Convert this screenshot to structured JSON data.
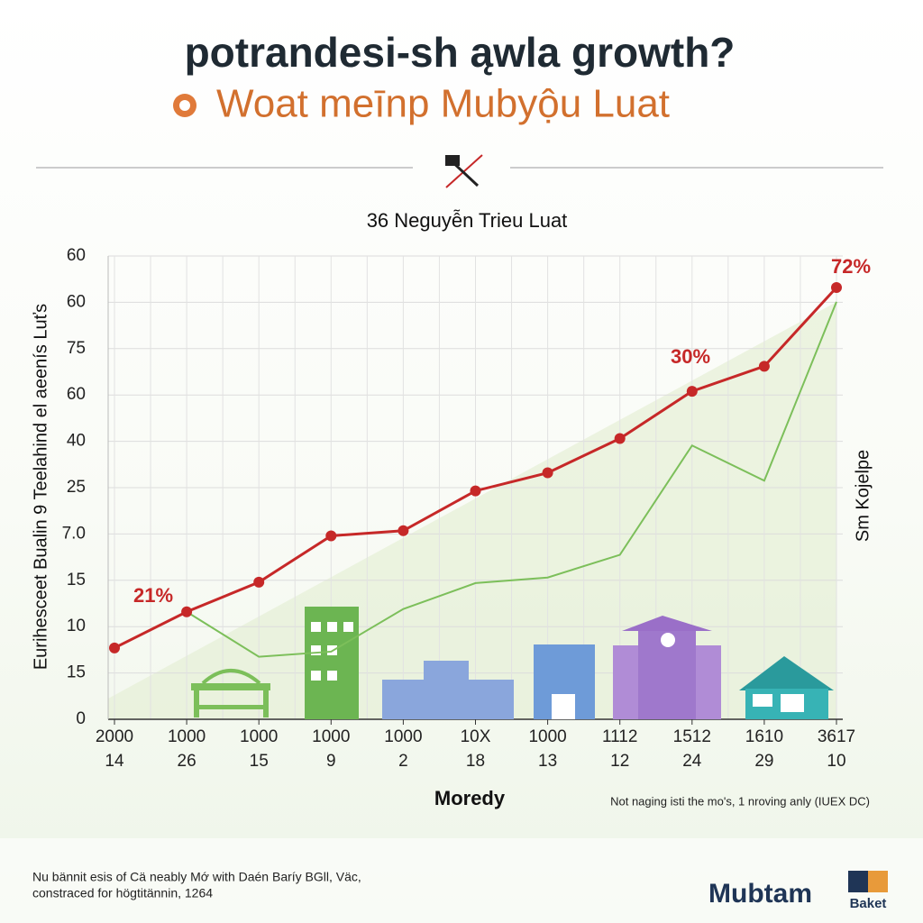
{
  "header": {
    "title": "potrandesi-sh ąwla growth?",
    "subtitle": "Woat meīnp Mubyộu Luat"
  },
  "chart_data": {
    "type": "line",
    "title": "36 Neguyễn Trieu Luat",
    "y_label": "Eurihesceet Bualin 9 Teelahind el aeenís Luťs",
    "y2_label": "Sm Kojelpe",
    "x_label": "Moredy",
    "note": "Not naging isti the mo's, 1 nroving anly (IUEX DC)",
    "categories": [
      [
        "2000",
        "14"
      ],
      [
        "1000",
        "26"
      ],
      [
        "1000",
        "15"
      ],
      [
        "1000",
        "9"
      ],
      [
        "1000",
        "2"
      ],
      [
        "10X",
        "18"
      ],
      [
        "1000",
        "13"
      ],
      [
        "1112",
        "12"
      ],
      [
        "1512",
        "24"
      ],
      [
        "1610",
        "29"
      ],
      [
        "3617",
        "10"
      ]
    ],
    "ylim": [
      0,
      100
    ],
    "yticks": [
      0,
      {
        "value": 10,
        "label": "15"
      },
      {
        "value": 20,
        "label": "10"
      },
      {
        "value": 30,
        "label": "15"
      },
      {
        "value": 40,
        "label": "7.0"
      },
      {
        "value": 50,
        "label": "25"
      },
      {
        "value": 60,
        "label": "40"
      },
      {
        "value": 70,
        "label": "60"
      },
      {
        "value": 80,
        "label": "75"
      },
      {
        "value": 90,
        "label": "60"
      },
      {
        "value": 100,
        "label": "60"
      }
    ],
    "grid": true,
    "series": [
      {
        "color": "#c62828",
        "values": [
          15.4,
          23.2,
          29.6,
          39.6,
          40.7,
          49.3,
          53.2,
          60.6,
          70.8,
          76.2,
          93.2
        ]
      },
      {
        "color": "#7cbf5a",
        "values": [
          null,
          23.2,
          13.5,
          14.6,
          23.8,
          29.4,
          30.6,
          35.5,
          59.1,
          51.5,
          90.1
        ]
      }
    ],
    "annotations": [
      "21%",
      "30%",
      "72%"
    ]
  },
  "footer": {
    "caption_lines": [
      "Nu bännit esis of Cä neably Mớ with Daén Baríy BGll, Väc,",
      "constraced for högtitännin, 1264"
    ],
    "brand": "Mubtam",
    "badge": "Baket"
  }
}
